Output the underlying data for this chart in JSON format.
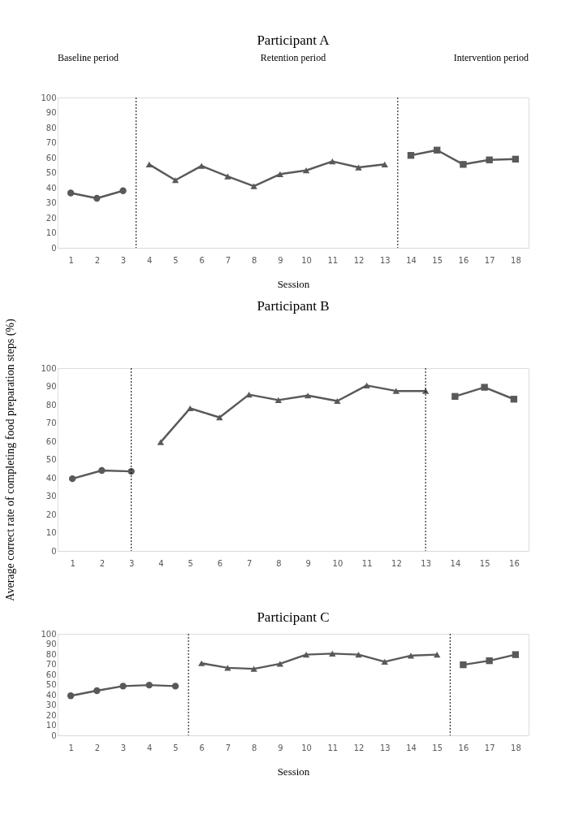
{
  "chart_data": [
    {
      "type": "line",
      "title": "Participant A",
      "xlabel": "Session",
      "annotations": [
        "Baseline period",
        "Retention period",
        "Intervention period"
      ],
      "xlim": [
        0.5,
        18.5
      ],
      "xticks": [
        1,
        2,
        3,
        4,
        5,
        6,
        7,
        8,
        9,
        10,
        11,
        12,
        13,
        14,
        15,
        16,
        17,
        18
      ],
      "ylim": [
        0,
        100
      ],
      "yticks": [
        0,
        10,
        20,
        30,
        40,
        50,
        60,
        70,
        80,
        90,
        100
      ],
      "grid": false,
      "line_style": "solid",
      "series": [
        {
          "color": "#595959",
          "marker": "circle",
          "x": [
            1,
            2,
            3
          ],
          "values": [
            36.5,
            33,
            38
          ]
        },
        {
          "color": "#595959",
          "marker": "triangle",
          "x": [
            4,
            5,
            6,
            7,
            8,
            9,
            10,
            11,
            12,
            13
          ],
          "values": [
            55.5,
            45,
            54.5,
            47.5,
            41,
            49,
            51.5,
            57.5,
            53.5,
            55.5
          ]
        },
        {
          "color": "#595959",
          "marker": "square",
          "x": [
            14,
            15,
            16,
            17,
            18
          ],
          "values": [
            61.5,
            65,
            55.5,
            58.5,
            59
          ]
        }
      ],
      "ref_lines": [
        {
          "axis": "x",
          "value": 3.5,
          "color": "#000000",
          "line_style": "dotted"
        },
        {
          "axis": "x",
          "value": 13.5,
          "color": "#000000",
          "line_style": "dotted"
        }
      ]
    },
    {
      "type": "line",
      "title": "Participant B",
      "ylabel": "Average correct rate of completing food preparation steps (%)",
      "xlim": [
        0.5,
        16.5
      ],
      "xticks": [
        1,
        2,
        3,
        4,
        5,
        6,
        7,
        8,
        9,
        10,
        11,
        12,
        13,
        14,
        15,
        16
      ],
      "ylim": [
        0,
        100
      ],
      "yticks": [
        0,
        10,
        20,
        30,
        40,
        50,
        60,
        70,
        80,
        90,
        100
      ],
      "grid": false,
      "line_style": "solid",
      "series": [
        {
          "color": "#595959",
          "marker": "circle",
          "x": [
            1,
            2,
            3
          ],
          "values": [
            39.5,
            44,
            43.5
          ]
        },
        {
          "color": "#595959",
          "marker": "triangle",
          "x": [
            4,
            5,
            6,
            7,
            8,
            9,
            10,
            11,
            12,
            13
          ],
          "values": [
            59.5,
            78,
            73,
            85.5,
            82.5,
            85,
            82,
            90.5,
            87.5,
            87.5
          ]
        },
        {
          "color": "#595959",
          "marker": "square",
          "x": [
            14,
            15,
            16
          ],
          "values": [
            84.5,
            89.5,
            83
          ]
        }
      ],
      "ref_lines": [
        {
          "axis": "x",
          "value": 3,
          "color": "#000000",
          "line_style": "dotted"
        },
        {
          "axis": "x",
          "value": 13,
          "color": "#000000",
          "line_style": "dotted"
        }
      ]
    },
    {
      "type": "line",
      "title": "Participant C",
      "xlabel": "Session",
      "xlim": [
        0.5,
        18.5
      ],
      "xticks": [
        1,
        2,
        3,
        4,
        5,
        6,
        7,
        8,
        9,
        10,
        11,
        12,
        13,
        14,
        15,
        16,
        17,
        18
      ],
      "ylim": [
        0,
        100
      ],
      "yticks": [
        0,
        10,
        20,
        30,
        40,
        50,
        60,
        70,
        80,
        90,
        100
      ],
      "grid": false,
      "line_style": "solid",
      "series": [
        {
          "color": "#595959",
          "marker": "circle",
          "x": [
            1,
            2,
            3,
            4,
            5
          ],
          "values": [
            39,
            44,
            48.5,
            49.5,
            48.5
          ]
        },
        {
          "color": "#595959",
          "marker": "triangle",
          "x": [
            6,
            7,
            8,
            9,
            10,
            11,
            12,
            13,
            14,
            15
          ],
          "values": [
            71,
            66.5,
            65.5,
            70.5,
            79.5,
            80.5,
            79.5,
            72.5,
            78.5,
            79.5
          ]
        },
        {
          "color": "#595959",
          "marker": "square",
          "x": [
            16,
            17,
            18
          ],
          "values": [
            69.5,
            73.5,
            79.5
          ]
        }
      ],
      "ref_lines": [
        {
          "axis": "x",
          "value": 5.5,
          "color": "#000000",
          "line_style": "dotted"
        },
        {
          "axis": "x",
          "value": 15.5,
          "color": "#000000",
          "line_style": "dotted"
        }
      ]
    }
  ]
}
